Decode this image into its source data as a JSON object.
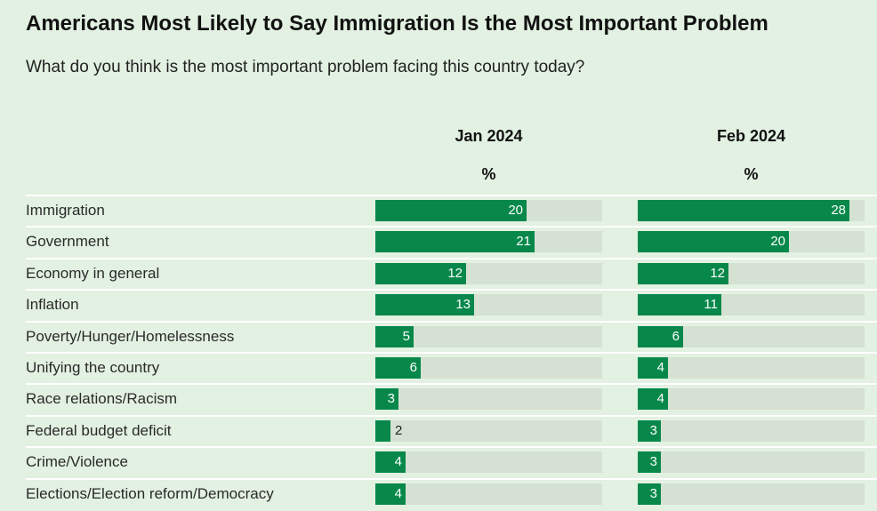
{
  "title": "Americans Most Likely to Say Immigration Is the Most Important Problem",
  "subtitle": "What do you think is the most important problem facing this country today?",
  "columns": [
    {
      "label": "Jan 2024",
      "unit": "%"
    },
    {
      "label": "Feb 2024",
      "unit": "%"
    }
  ],
  "colors": {
    "background": "#e2f1e1",
    "bar": "#07884a",
    "track": "#d5e1d3"
  },
  "chart_data": {
    "type": "bar",
    "title": "Americans Most Likely to Say Immigration Is the Most Important Problem",
    "subtitle": "What do you think is the most important problem facing this country today?",
    "categories": [
      "Immigration",
      "Government",
      "Economy in general",
      "Inflation",
      "Poverty/Hunger/Homelessness",
      "Unifying the country",
      "Race relations/Racism",
      "Federal budget deficit",
      "Crime/Violence",
      "Elections/Election reform/Democracy"
    ],
    "series": [
      {
        "name": "Jan 2024",
        "values": [
          20,
          21,
          12,
          13,
          5,
          6,
          3,
          2,
          4,
          4
        ]
      },
      {
        "name": "Feb 2024",
        "values": [
          28,
          20,
          12,
          11,
          6,
          4,
          4,
          3,
          3,
          3
        ]
      }
    ],
    "unit": "%",
    "xlim": [
      0,
      30
    ]
  }
}
